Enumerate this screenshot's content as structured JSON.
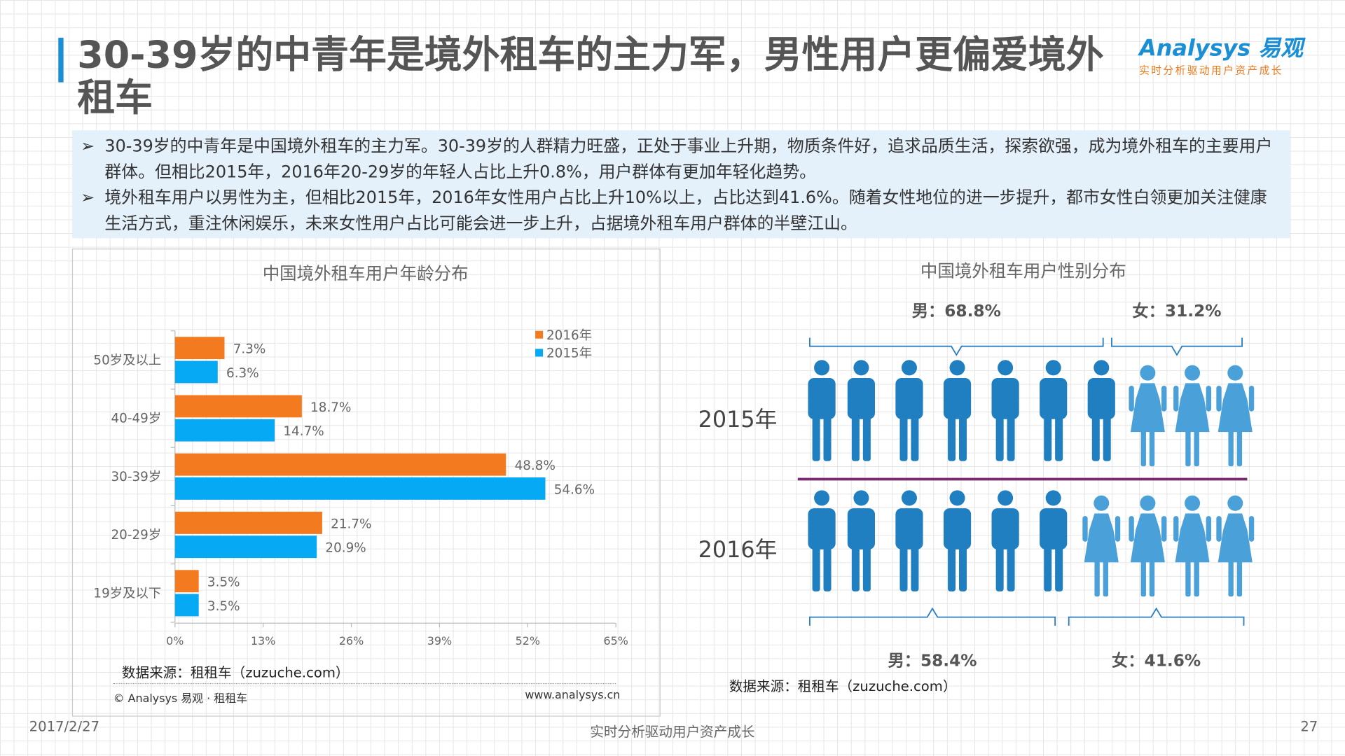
{
  "title": "30-39岁的中青年是境外租车的主力军，男性用户更偏爱境外租车",
  "logo": {
    "brand": "Analysys 易观",
    "tagline": "实时分析驱动用户资产成长"
  },
  "summary": [
    "30-39岁的中青年是中国境外租车的主力军。30-39岁的人群精力旺盛，正处于事业上升期，物质条件好，追求品质生活，探索欲强，成为境外租车的主要用户群体。但相比2015年，2016年20-29岁的年轻人占比上升0.8%，用户群体有更加年轻化趋势。",
    "境外租车用户以男性为主，但相比2015年，2016年女性用户占比上升10%以上，占比达到41.6%。随着女性地位的进一步提升，都市女性白领更加关注健康生活方式，重注休闲娱乐，未来女性用户占比可能会进一步上升，占据境外租车用户群体的半壁江山。"
  ],
  "bullet_icon": "arrow-right-icon",
  "chart_data": [
    {
      "type": "bar",
      "orientation": "horizontal",
      "title": "中国境外租车用户年龄分布",
      "categories": [
        "50岁及以上",
        "40-49岁",
        "30-39岁",
        "20-29岁",
        "19岁及以下"
      ],
      "series": [
        {
          "name": "2016年",
          "color": "#f47a20",
          "values": [
            7.3,
            18.7,
            48.8,
            21.7,
            3.5
          ]
        },
        {
          "name": "2015年",
          "color": "#05a9f4",
          "values": [
            6.3,
            14.7,
            54.6,
            20.9,
            3.5
          ]
        }
      ],
      "value_labels": {
        "2016年": [
          "7.3%",
          "18.7%",
          "48.8%",
          "21.7%",
          "3.5%"
        ],
        "2015年": [
          "6.3%",
          "14.7%",
          "54.6%",
          "20.9%",
          "3.5%"
        ]
      },
      "xlim": [
        0,
        65
      ],
      "xticks": [
        "0%",
        "13%",
        "26%",
        "39%",
        "52%",
        "65%"
      ],
      "legend": "top-right",
      "source": "数据来源：租租车（zuzuche.com）",
      "copyright": "© Analysys 易观 · 租租车",
      "url": "www.analysys.cn"
    },
    {
      "type": "pictogram",
      "title": "中国境外租车用户性别分布",
      "rows": [
        {
          "label": "2015年",
          "male": 68.8,
          "female": 31.2,
          "male_label": "男：68.8%",
          "female_label": "女：31.2%"
        },
        {
          "label": "2016年",
          "male": 58.4,
          "female": 41.6,
          "male_label": "男：58.4%",
          "female_label": "女：41.6%"
        }
      ],
      "colors": {
        "male": "#1f7fc1",
        "female": "#4aa0d8",
        "divider": "#7b2a6e"
      },
      "source": "数据来源：租租车（zuzuche.com）"
    }
  ],
  "footer": {
    "date": "2017/2/27",
    "slogan": "实时分析驱动用户资产成长",
    "page": "27"
  }
}
